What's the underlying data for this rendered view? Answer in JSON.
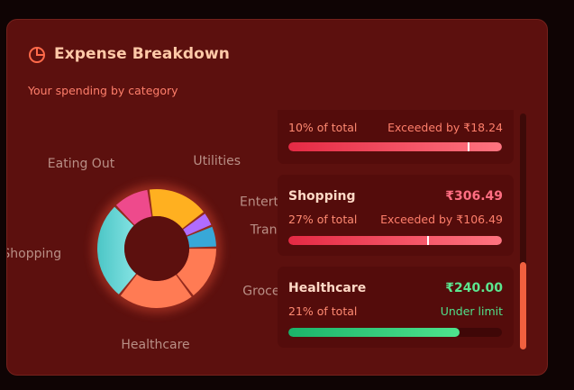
{
  "card": {
    "title": "Expense Breakdown",
    "title_icon": "pie-chart-icon",
    "subtitle": "Your spending by category"
  },
  "chart_data": {
    "type": "pie",
    "categories": [
      "Groceries",
      "Healthcare",
      "Shopping",
      "Eating Out",
      "Utilities",
      "Entertainment",
      "Transportation"
    ],
    "values": [
      15,
      21,
      27,
      10,
      17,
      4,
      6
    ],
    "colors": [
      "#ff7b54",
      "#ff7b54",
      "#5fd0d0",
      "#ee4a8c",
      "#ffb020",
      "#b06cff",
      "#38a8d8"
    ],
    "title": ""
  },
  "budget_items": [
    {
      "name": "",
      "amount": "",
      "pct_text": "10% of total",
      "status": "Exceeded by ₹18.24",
      "status_color": "#ff7f6b",
      "fill_pct": 100,
      "marker_pct": 84,
      "fill_color": "linear-gradient(90deg,#e52a44,#ff7480)"
    },
    {
      "name": "Shopping",
      "amount": "₹306.49",
      "amount_color": "#ff6e82",
      "pct_text": "27% of total",
      "status": "Exceeded by ₹106.49",
      "status_color": "#ff7f6b",
      "fill_pct": 100,
      "marker_pct": 65,
      "fill_color": "linear-gradient(90deg,#e52a44,#ff7480)"
    },
    {
      "name": "Healthcare",
      "amount": "₹240.00",
      "amount_color": "#5ce68f",
      "pct_text": "21% of total",
      "status": "Under limit",
      "status_color": "#4fe08a",
      "fill_pct": 80,
      "fill_color": "linear-gradient(90deg,#1bb36a,#4ee38d)"
    }
  ],
  "scrollbar": {
    "position": "bottom"
  }
}
